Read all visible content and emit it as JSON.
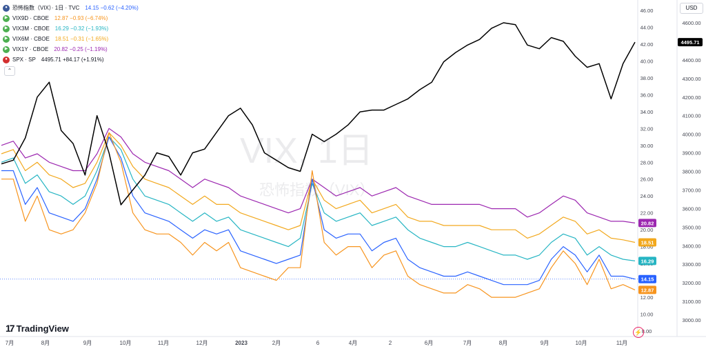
{
  "title_row": {
    "name": "恐怖指数（VIX）· 1日 · TVC",
    "value": "14.15 −0.62 (−4.20%)"
  },
  "watermark": {
    "main": "VIX, 1日",
    "sub": "恐怖指数（VIX）"
  },
  "currency": "USD",
  "legend": [
    {
      "name": "VIX9D · CBOE",
      "value": "12.87 −0.93 (−6.74%)",
      "color": "#f7941d",
      "icon": "play-icon"
    },
    {
      "name": "VIX3M · CBOE",
      "value": "16.29 −0.32 (−1.93%)",
      "color": "#26b5c3",
      "icon": "play-icon"
    },
    {
      "name": "VIX6M · CBOE",
      "value": "18.51 −0.31 (−1.65%)",
      "color": "#f2a81d",
      "icon": "play-icon"
    },
    {
      "name": "VIX1Y · CBOE",
      "value": "20.82 −0.25 (−1.19%)",
      "color": "#9c27b0",
      "icon": "play-icon"
    },
    {
      "name": "SPX · SP",
      "value": "4495.71 +84.17 (+1.91%)",
      "color": "#131722",
      "icon": "spx-badge-icon"
    }
  ],
  "collapse_icon": "chevron-up-icon",
  "logo": {
    "mark": "17",
    "text": "TradingView"
  },
  "chart_data": {
    "type": "line",
    "x_ticks": [
      "7月",
      "8月",
      "9月",
      "10月",
      "11月",
      "12月",
      "2023",
      "2月",
      "6",
      "4月",
      "2",
      "6月",
      "7月",
      "8月",
      "9月",
      "10月",
      "11月"
    ],
    "left_axis": {
      "ticks": [
        8,
        10,
        12,
        14,
        16,
        18,
        20,
        22,
        24,
        26,
        28,
        30,
        32,
        34,
        36,
        38,
        40,
        42,
        44,
        46
      ],
      "range": [
        8,
        46
      ]
    },
    "right_axis": {
      "ticks": [
        3000,
        3100,
        3200,
        3300,
        3400,
        3500,
        3600,
        3700,
        3800,
        3900,
        4000,
        4100,
        4200,
        4300,
        4400,
        4500,
        4600
      ],
      "range": [
        2940,
        4690
      ]
    },
    "series": [
      {
        "name": "VIX1Y",
        "color": "#9c27b0",
        "axis": "left",
        "label": "20.82",
        "values": [
          30,
          30.5,
          28.5,
          29,
          28,
          27.5,
          27,
          27,
          29,
          32,
          31,
          29,
          28,
          27.5,
          27,
          26,
          25,
          26,
          25.5,
          25,
          24,
          23.5,
          23,
          22.5,
          22,
          22.5,
          26,
          25,
          24,
          24.5,
          25,
          24,
          24.5,
          25,
          24,
          23.5,
          23,
          23,
          23,
          23,
          23,
          22.5,
          22.5,
          22.5,
          21.5,
          22,
          23,
          24,
          23.5,
          22,
          21.5,
          21,
          21,
          20.8
        ]
      },
      {
        "name": "VIX6M",
        "color": "#f2a81d",
        "axis": "left",
        "label": "18.51",
        "values": [
          29,
          29.5,
          27,
          28,
          26.5,
          26,
          25,
          25.5,
          28,
          31.5,
          30,
          27.5,
          26,
          25.5,
          25,
          24,
          23,
          24,
          23,
          23,
          22,
          21.5,
          21,
          20.5,
          20,
          20.5,
          26,
          23.5,
          22.5,
          23,
          23.5,
          22,
          22.5,
          23,
          21.5,
          21,
          21,
          20.5,
          20.5,
          20.5,
          20.5,
          20,
          20,
          20,
          19,
          19.5,
          20.5,
          21.5,
          21,
          19.5,
          20,
          19,
          18.8,
          18.5
        ]
      },
      {
        "name": "VIX3M",
        "color": "#26b5c3",
        "axis": "left",
        "label": "16.29",
        "values": [
          28,
          28.5,
          25.5,
          26.5,
          24.5,
          24,
          23,
          24,
          27,
          31,
          29.5,
          26,
          24,
          23.5,
          23,
          22,
          21,
          22,
          21,
          21.5,
          20,
          19.5,
          19,
          18.5,
          18,
          19,
          25.5,
          22,
          21,
          21.5,
          22,
          20.5,
          21,
          21.5,
          20,
          19,
          18.5,
          18,
          18,
          18.5,
          18,
          17.5,
          17,
          17,
          16.5,
          17,
          18.5,
          19.5,
          19,
          17,
          18,
          17,
          16.5,
          16.3
        ]
      },
      {
        "name": "VIX",
        "color": "#2962ff",
        "axis": "left",
        "label": "14.15",
        "values": [
          27,
          27,
          23,
          25,
          22,
          21.5,
          21,
          22.5,
          26,
          31,
          28.5,
          24,
          22,
          21.5,
          21,
          20,
          19,
          20,
          19.5,
          20,
          17.5,
          17,
          16.5,
          16,
          16.5,
          17,
          26,
          20,
          19,
          19.5,
          19.5,
          17.5,
          18.5,
          19,
          16.5,
          15.5,
          15,
          14.5,
          14.5,
          15,
          14.5,
          14,
          13.5,
          13.5,
          13.5,
          14,
          16.5,
          18,
          17,
          15,
          17,
          14.5,
          14.5,
          14.15
        ]
      },
      {
        "name": "VIX9D",
        "color": "#f7941d",
        "axis": "left",
        "label": "12.87",
        "values": [
          26,
          26,
          21,
          24,
          20,
          19.5,
          20,
          22,
          25.5,
          31.5,
          28,
          22,
          20,
          19.5,
          19.5,
          18.5,
          17,
          18.5,
          17.5,
          18.5,
          15.5,
          15,
          14.5,
          14,
          15.5,
          15.5,
          27,
          18.5,
          17,
          18,
          18,
          15.5,
          17,
          17.5,
          14.5,
          13.5,
          13,
          12.5,
          12.5,
          13.5,
          13,
          12,
          12,
          12,
          12.5,
          13,
          15.5,
          17.5,
          16,
          13.5,
          16.5,
          13,
          13.5,
          12.87
        ]
      },
      {
        "name": "SPX",
        "color": "#000000",
        "axis": "right",
        "label": "4495.71",
        "values": [
          3840,
          3860,
          3980,
          4200,
          4280,
          4020,
          3950,
          3780,
          4100,
          3900,
          3620,
          3700,
          3780,
          3900,
          3880,
          3780,
          3900,
          3920,
          4010,
          4100,
          4140,
          4050,
          3900,
          3860,
          3820,
          3800,
          4000,
          3960,
          4000,
          4050,
          4120,
          4130,
          4130,
          4160,
          4190,
          4240,
          4280,
          4390,
          4440,
          4480,
          4510,
          4570,
          4600,
          4590,
          4480,
          4460,
          4520,
          4500,
          4420,
          4360,
          4380,
          4190,
          4380,
          4495.71
        ]
      }
    ],
    "crosshair_y": 14.15,
    "grid": false,
    "legend_position": "top-left"
  }
}
